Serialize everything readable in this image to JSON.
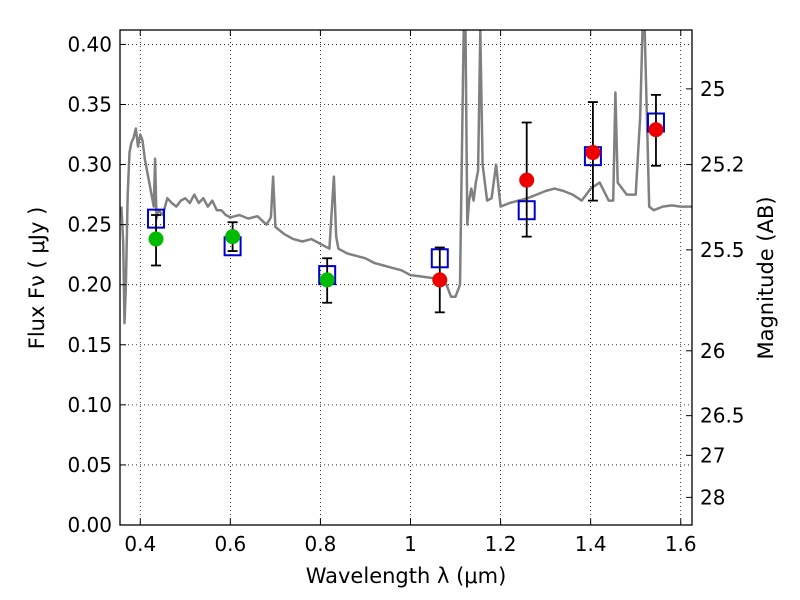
{
  "chart_data": {
    "type": "scatter",
    "xlabel": "Wavelength  λ (μm)",
    "ylabel": "Flux  Fν  ( μJy )",
    "right_ylabel": "Magnitude (AB)",
    "xlim": [
      0.355,
      1.625
    ],
    "ylim": [
      0.0,
      0.412
    ],
    "grid": true,
    "x_ticks": [
      {
        "value": 0.4,
        "label": "0.4"
      },
      {
        "value": 0.6,
        "label": "0.6"
      },
      {
        "value": 0.8,
        "label": "0.8"
      },
      {
        "value": 1.0,
        "label": "1"
      },
      {
        "value": 1.2,
        "label": "1.2"
      },
      {
        "value": 1.4,
        "label": "1.4"
      },
      {
        "value": 1.6,
        "label": "1.6"
      }
    ],
    "y_ticks": [
      {
        "value": 0.0,
        "label": "0.00"
      },
      {
        "value": 0.05,
        "label": "0.05"
      },
      {
        "value": 0.1,
        "label": "0.10"
      },
      {
        "value": 0.15,
        "label": "0.15"
      },
      {
        "value": 0.2,
        "label": "0.20"
      },
      {
        "value": 0.25,
        "label": "0.25"
      },
      {
        "value": 0.3,
        "label": "0.30"
      },
      {
        "value": 0.35,
        "label": "0.35"
      },
      {
        "value": 0.4,
        "label": "0.40"
      }
    ],
    "right_ticks": [
      {
        "flux": 0.363,
        "label": "25"
      },
      {
        "flux": 0.3,
        "label": "25.2"
      },
      {
        "flux": 0.229,
        "label": "25.5"
      },
      {
        "flux": 0.145,
        "label": "26"
      },
      {
        "flux": 0.091,
        "label": "26.5"
      },
      {
        "flux": 0.058,
        "label": "27"
      },
      {
        "flux": 0.023,
        "label": "28"
      }
    ],
    "colors": {
      "model_line": "#808080",
      "green_points": "#00bb00",
      "red_points": "#ee0000",
      "model_boxes": "#0000cc",
      "error_bars": "#000000"
    },
    "series": [
      {
        "style": "line",
        "x": [
          0.358,
          0.362,
          0.365,
          0.368,
          0.372,
          0.376,
          0.38,
          0.385,
          0.39,
          0.395,
          0.4,
          0.405,
          0.41,
          0.415,
          0.42,
          0.425,
          0.43,
          0.433,
          0.436,
          0.44,
          0.45,
          0.46,
          0.47,
          0.48,
          0.49,
          0.5,
          0.51,
          0.52,
          0.53,
          0.54,
          0.55,
          0.56,
          0.57,
          0.58,
          0.59,
          0.6,
          0.62,
          0.64,
          0.66,
          0.68,
          0.69,
          0.695,
          0.7,
          0.72,
          0.74,
          0.76,
          0.78,
          0.8,
          0.82,
          0.83,
          0.835,
          0.84,
          0.86,
          0.88,
          0.9,
          0.92,
          0.94,
          0.96,
          0.98,
          1.0,
          1.02,
          1.04,
          1.06,
          1.08,
          1.09,
          1.1,
          1.11,
          1.118,
          1.122,
          1.126,
          1.13,
          1.135,
          1.14,
          1.145,
          1.15,
          1.155,
          1.16,
          1.17,
          1.18,
          1.19,
          1.2,
          1.22,
          1.24,
          1.26,
          1.28,
          1.3,
          1.32,
          1.34,
          1.36,
          1.38,
          1.4,
          1.42,
          1.44,
          1.45,
          1.455,
          1.46,
          1.48,
          1.5,
          1.51,
          1.515,
          1.52,
          1.53,
          1.54,
          1.56,
          1.58,
          1.6,
          1.625
        ],
        "y": [
          0.265,
          0.235,
          0.168,
          0.2,
          0.275,
          0.31,
          0.318,
          0.322,
          0.33,
          0.315,
          0.325,
          0.32,
          0.305,
          0.295,
          0.285,
          0.275,
          0.265,
          0.305,
          0.255,
          0.262,
          0.258,
          0.272,
          0.268,
          0.265,
          0.27,
          0.272,
          0.268,
          0.275,
          0.268,
          0.272,
          0.265,
          0.27,
          0.262,
          0.262,
          0.258,
          0.256,
          0.258,
          0.255,
          0.257,
          0.25,
          0.256,
          0.29,
          0.248,
          0.242,
          0.238,
          0.236,
          0.238,
          0.234,
          0.23,
          0.29,
          0.24,
          0.23,
          0.226,
          0.224,
          0.222,
          0.218,
          0.216,
          0.214,
          0.212,
          0.208,
          0.207,
          0.206,
          0.205,
          0.2,
          0.19,
          0.19,
          0.2,
          0.412,
          0.412,
          0.25,
          0.27,
          0.28,
          0.27,
          0.285,
          0.295,
          0.412,
          0.3,
          0.27,
          0.272,
          0.3,
          0.265,
          0.268,
          0.27,
          0.272,
          0.275,
          0.278,
          0.28,
          0.278,
          0.275,
          0.27,
          0.28,
          0.285,
          0.27,
          0.27,
          0.36,
          0.285,
          0.275,
          0.275,
          0.34,
          0.412,
          0.412,
          0.265,
          0.262,
          0.265,
          0.266,
          0.265,
          0.265
        ]
      },
      {
        "style": "boxes",
        "x": [
          0.435,
          0.605,
          0.815,
          1.065,
          1.258,
          1.405,
          1.545
        ],
        "y": [
          0.255,
          0.232,
          0.208,
          0.222,
          0.262,
          0.307,
          0.335
        ]
      },
      {
        "style": "points",
        "color": "green",
        "x": [
          0.435,
          0.605,
          0.815
        ],
        "y": [
          0.238,
          0.24,
          0.204
        ],
        "yerr_low": [
          0.216,
          0.228,
          0.185
        ],
        "yerr_high": [
          0.258,
          0.252,
          0.222
        ]
      },
      {
        "style": "points",
        "color": "red",
        "x": [
          1.065,
          1.258,
          1.405,
          1.545
        ],
        "y": [
          0.204,
          0.287,
          0.31,
          0.329
        ],
        "yerr_low": [
          0.177,
          0.24,
          0.27,
          0.299
        ],
        "yerr_high": [
          0.231,
          0.335,
          0.352,
          0.358
        ]
      }
    ]
  }
}
